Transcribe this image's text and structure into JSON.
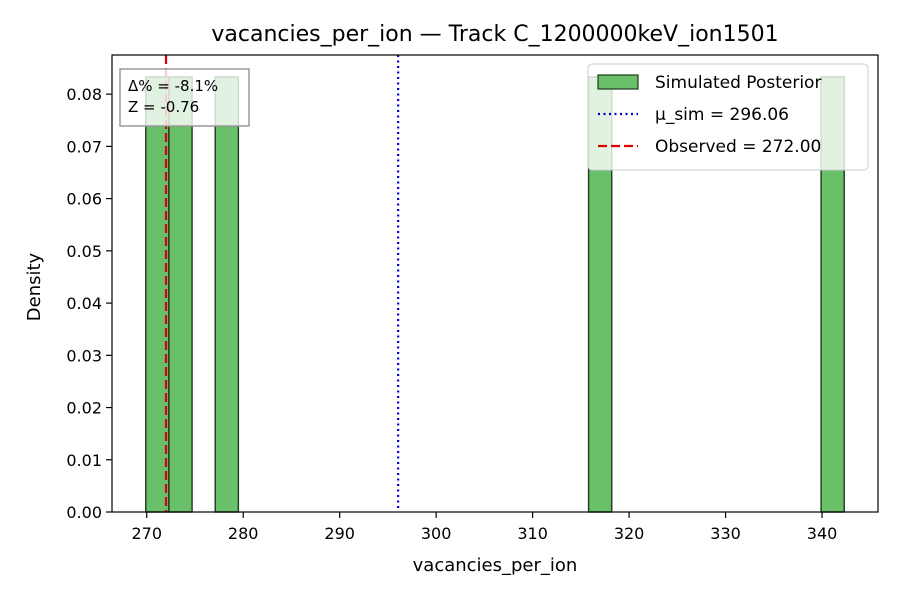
{
  "chart_data": {
    "type": "bar",
    "title": "vacancies_per_ion — Track C_1200000keV_ion1501",
    "xlabel": "vacancies_per_ion",
    "ylabel": "Density",
    "xlim": [
      266.4,
      345.8
    ],
    "ylim": [
      0,
      0.0875
    ],
    "xticks": [
      270,
      280,
      290,
      300,
      310,
      320,
      330,
      340
    ],
    "xtick_labels": [
      "270",
      "280",
      "290",
      "300",
      "310",
      "320",
      "330",
      "340"
    ],
    "yticks": [
      0.0,
      0.01,
      0.02,
      0.03,
      0.04,
      0.05,
      0.06,
      0.07,
      0.08
    ],
    "ytick_labels": [
      "0.00",
      "0.01",
      "0.02",
      "0.03",
      "0.04",
      "0.05",
      "0.06",
      "0.07",
      "0.08"
    ],
    "bin_width": 2.4,
    "bars": [
      {
        "x0": 269.9,
        "x1": 272.3,
        "density": 0.0833
      },
      {
        "x0": 272.3,
        "x1": 274.7,
        "density": 0.0833
      },
      {
        "x0": 277.1,
        "x1": 279.5,
        "density": 0.0833
      },
      {
        "x0": 315.8,
        "x1": 318.2,
        "density": 0.0833
      },
      {
        "x0": 339.9,
        "x1": 342.3,
        "density": 0.0833
      }
    ],
    "bar_color": "#6abf69",
    "bar_edge_color": "#1f3a1f",
    "lines": [
      {
        "x": 296.06,
        "color": "#0000cc",
        "style": "dotted"
      },
      {
        "x": 272.0,
        "color": "#dd0000",
        "style": "dashed"
      }
    ],
    "legend": {
      "placement": "top-right",
      "entries": [
        {
          "label": "Simulated Posterior",
          "kind": "patch"
        },
        {
          "label": "μ_sim = 296.06",
          "kind": "dotted"
        },
        {
          "label": "Observed = 272.00",
          "kind": "dashed"
        }
      ]
    },
    "annotation": {
      "placement": "top-left",
      "lines": [
        "Δ% = -8.1%",
        "Z = -0.76"
      ]
    },
    "grid": false
  }
}
